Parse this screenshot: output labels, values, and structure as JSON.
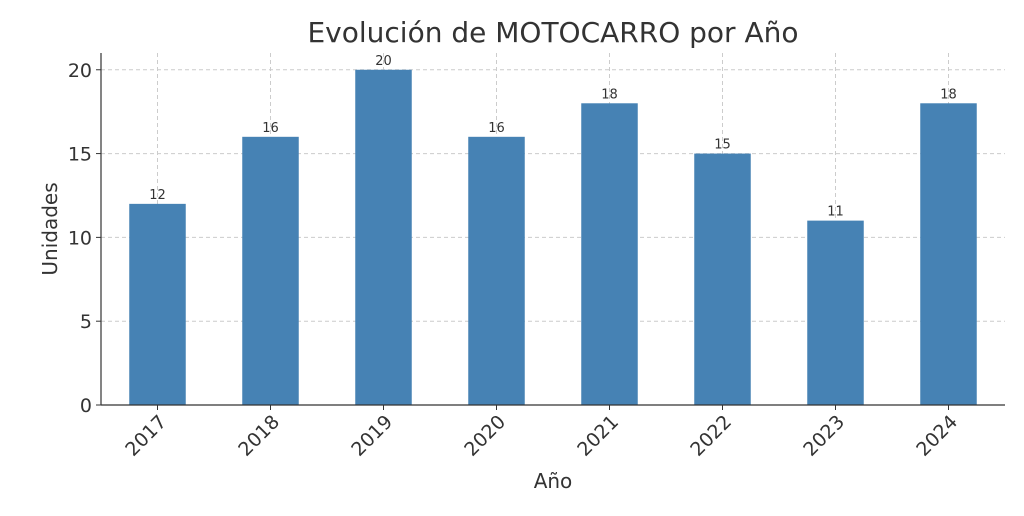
{
  "chart_data": {
    "type": "bar",
    "title": "Evolución de MOTOCARRO por Año",
    "xlabel": "Año",
    "ylabel": "Unidades",
    "categories": [
      "2017",
      "2018",
      "2019",
      "2020",
      "2021",
      "2022",
      "2023",
      "2024"
    ],
    "values": [
      12,
      16,
      20,
      16,
      18,
      15,
      11,
      18
    ],
    "ylim": [
      0,
      21
    ],
    "yticks": [
      0,
      5,
      10,
      15,
      20
    ],
    "grid": true,
    "bar_color": "#4682b4"
  }
}
